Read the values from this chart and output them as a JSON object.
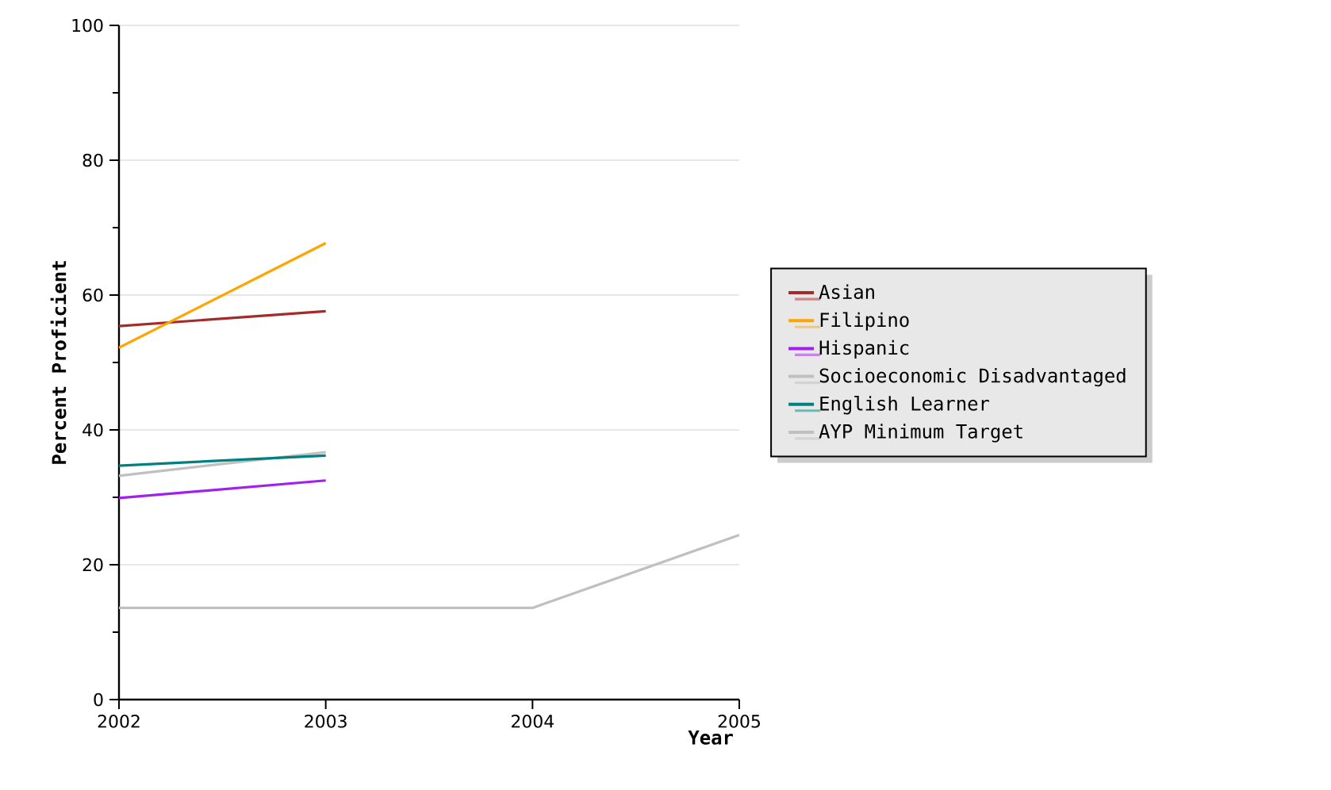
{
  "chart_data": {
    "type": "line",
    "xlabel": "Year",
    "ylabel": "Percent Proficient",
    "xlim": [
      2002,
      2005
    ],
    "xticks": [
      2002,
      2003,
      2004,
      2005
    ],
    "ylim": [
      0,
      100
    ],
    "yticks": [
      0,
      {
        "value": 10,
        "label": null
      },
      20,
      {
        "value": 30,
        "label": null
      },
      40,
      {
        "value": 50,
        "label": null
      },
      60,
      {
        "value": 70,
        "label": null
      },
      80,
      {
        "value": 90,
        "label": null
      },
      100
    ],
    "grid": "y",
    "legend": "right",
    "marker": "none",
    "line_style": "solid",
    "series": [
      {
        "name": "Asian",
        "color": "#a52a2a",
        "x": [
          2002,
          2003
        ],
        "values": [
          55.4,
          57.6
        ]
      },
      {
        "name": "Filipino",
        "color": "#ffa500",
        "x": [
          2002,
          2003
        ],
        "values": [
          52.2,
          67.7
        ]
      },
      {
        "name": "Hispanic",
        "color": "#a020f0",
        "x": [
          2002,
          2003
        ],
        "values": [
          29.9,
          32.5
        ]
      },
      {
        "name": "Socioeconomic Disadvantaged",
        "color": "#c0c0c0",
        "x": [
          2002,
          2003
        ],
        "values": [
          33.2,
          36.7
        ]
      },
      {
        "name": "English Learner",
        "color": "#008080",
        "x": [
          2002,
          2003
        ],
        "values": [
          34.7,
          36.2
        ]
      },
      {
        "name": "AYP Minimum Target",
        "color": "#c0c0c0",
        "x": [
          2002,
          2003,
          2004,
          2005
        ],
        "values": [
          13.6,
          13.6,
          13.6,
          24.4
        ]
      }
    ]
  }
}
